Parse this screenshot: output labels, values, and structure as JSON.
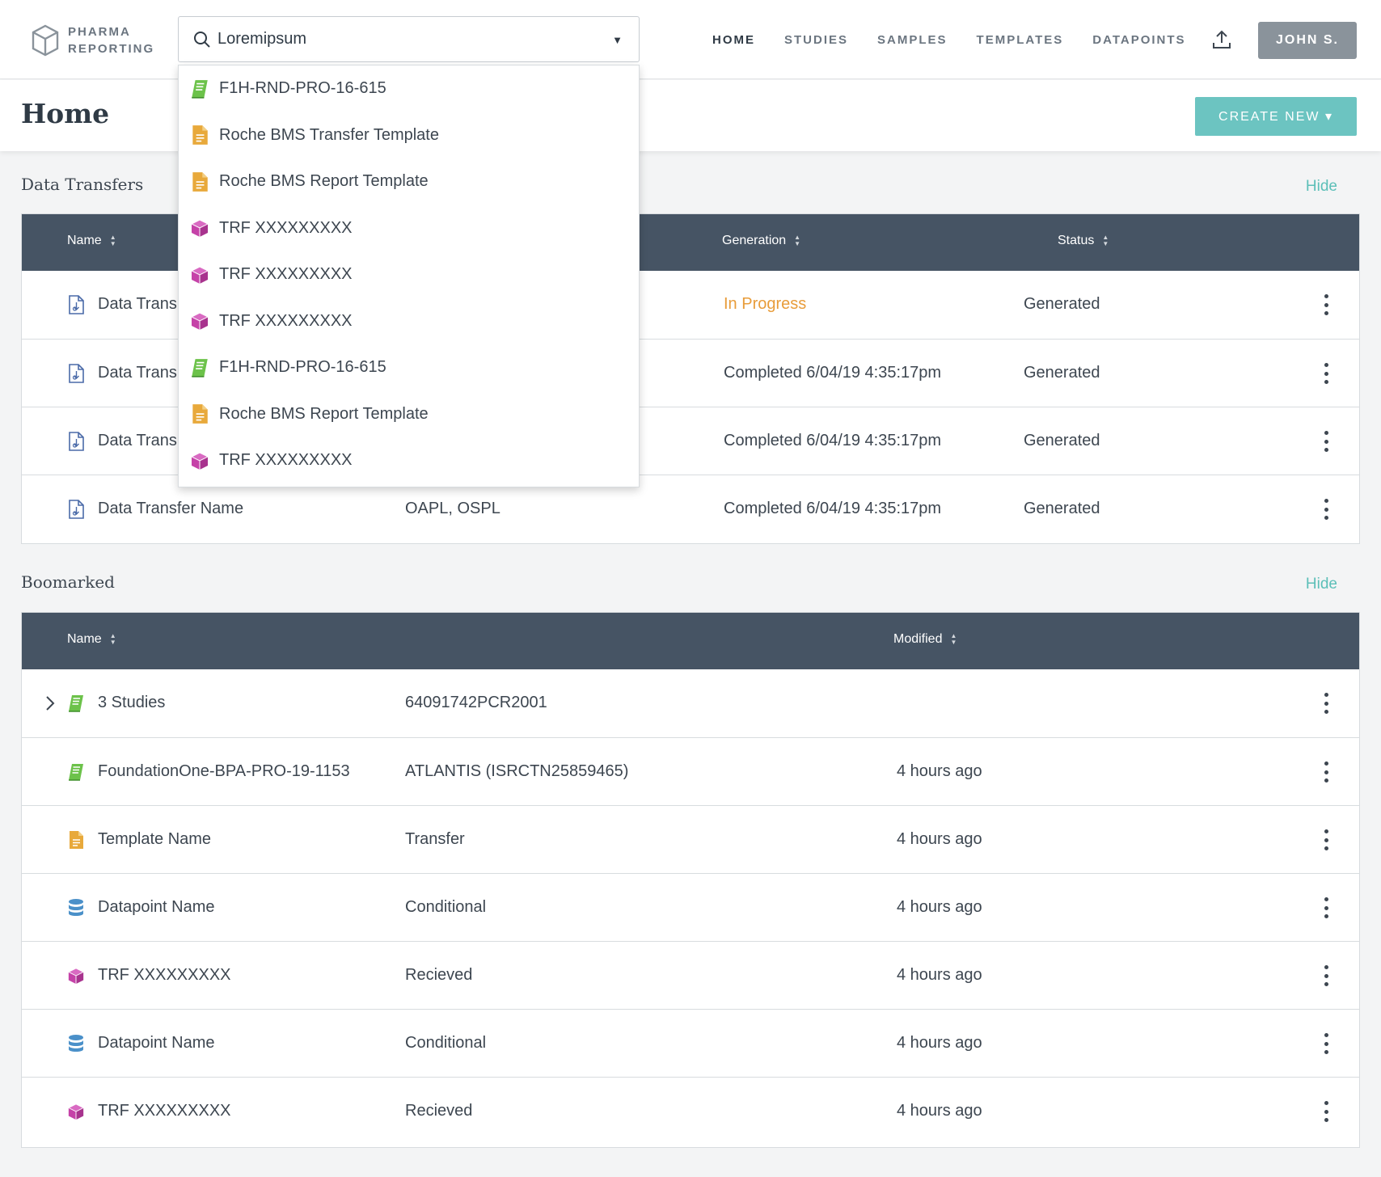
{
  "app": {
    "logo_line1": "PHARMA",
    "logo_line2": "REPORTING"
  },
  "search": {
    "value": "Loremipsum",
    "placeholder": ""
  },
  "nav": {
    "links": [
      "HOME",
      "STUDIES",
      "SAMPLES",
      "TEMPLATES",
      "DATAPOINTS"
    ],
    "user": "JOHN S."
  },
  "page": {
    "title": "Home",
    "create_label": "CREATE NEW ▾"
  },
  "dropdown": [
    {
      "icon": "study-book-icon",
      "label": "F1H-RND-PRO-16-615"
    },
    {
      "icon": "template-doc-icon",
      "label": "Roche BMS Transfer Template"
    },
    {
      "icon": "template-doc-icon",
      "label": "Roche BMS Report Template"
    },
    {
      "icon": "sample-cube-icon",
      "label": "TRF XXXXXXXXX"
    },
    {
      "icon": "sample-cube-icon",
      "label": "TRF XXXXXXXXX"
    },
    {
      "icon": "sample-cube-icon",
      "label": "TRF XXXXXXXXX"
    },
    {
      "icon": "study-book-icon",
      "label": "F1H-RND-PRO-16-615"
    },
    {
      "icon": "template-doc-icon",
      "label": "Roche BMS Report Template"
    },
    {
      "icon": "sample-cube-icon",
      "label": "TRF XXXXXXXXX"
    }
  ],
  "transfers": {
    "title": "Data Transfers",
    "hide": "Hide",
    "headers": {
      "name": "Name",
      "generation": "Generation",
      "status": "Status"
    },
    "rows": [
      {
        "name": "Data Trans",
        "col2": "",
        "generation": "In Progress",
        "status": "Generated"
      },
      {
        "name": "Data Trans",
        "col2": "",
        "generation": "Completed 6/04/19 4:35:17pm",
        "status": "Generated"
      },
      {
        "name": "Data Trans",
        "col2": "",
        "generation": "Completed 6/04/19 4:35:17pm",
        "status": "Generated"
      },
      {
        "name": "Data Transfer Name",
        "col2": "OAPL, OSPL",
        "generation": "Completed 6/04/19 4:35:17pm",
        "status": "Generated"
      }
    ]
  },
  "bookmarked": {
    "title": "Boomarked",
    "hide": "Hide",
    "headers": {
      "name": "Name",
      "modified": "Modified"
    },
    "rows": [
      {
        "icon": "study-book-icon",
        "name": "3 Studies",
        "col2": "64091742PCR2001",
        "modified": ""
      },
      {
        "icon": "study-book-icon",
        "name": "FoundationOne-BPA-PRO-19-1153",
        "col2": "ATLANTIS (ISRCTN25859465)",
        "modified": "4 hours ago"
      },
      {
        "icon": "template-doc-icon",
        "name": "Template Name",
        "col2": "Transfer",
        "modified": "4 hours ago"
      },
      {
        "icon": "datapoint-db-icon",
        "name": "Datapoint Name",
        "col2": "Conditional",
        "modified": "4 hours ago"
      },
      {
        "icon": "sample-cube-icon",
        "name": "TRF XXXXXXXXX",
        "col2": "Recieved",
        "modified": "4 hours ago"
      },
      {
        "icon": "datapoint-db-icon",
        "name": "Datapoint Name",
        "col2": "Conditional",
        "modified": "4 hours ago"
      },
      {
        "icon": "sample-cube-icon",
        "name": "TRF XXXXXXXXX",
        "col2": "Recieved",
        "modified": "4 hours ago"
      }
    ]
  },
  "colors": {
    "accent": "#6cc4c1",
    "header_bg": "#465464",
    "in_progress": "#e89c3a",
    "study": "#6cc24a",
    "template": "#e8a93b",
    "sample": "#c542a8",
    "datapoint": "#4a90c9"
  }
}
